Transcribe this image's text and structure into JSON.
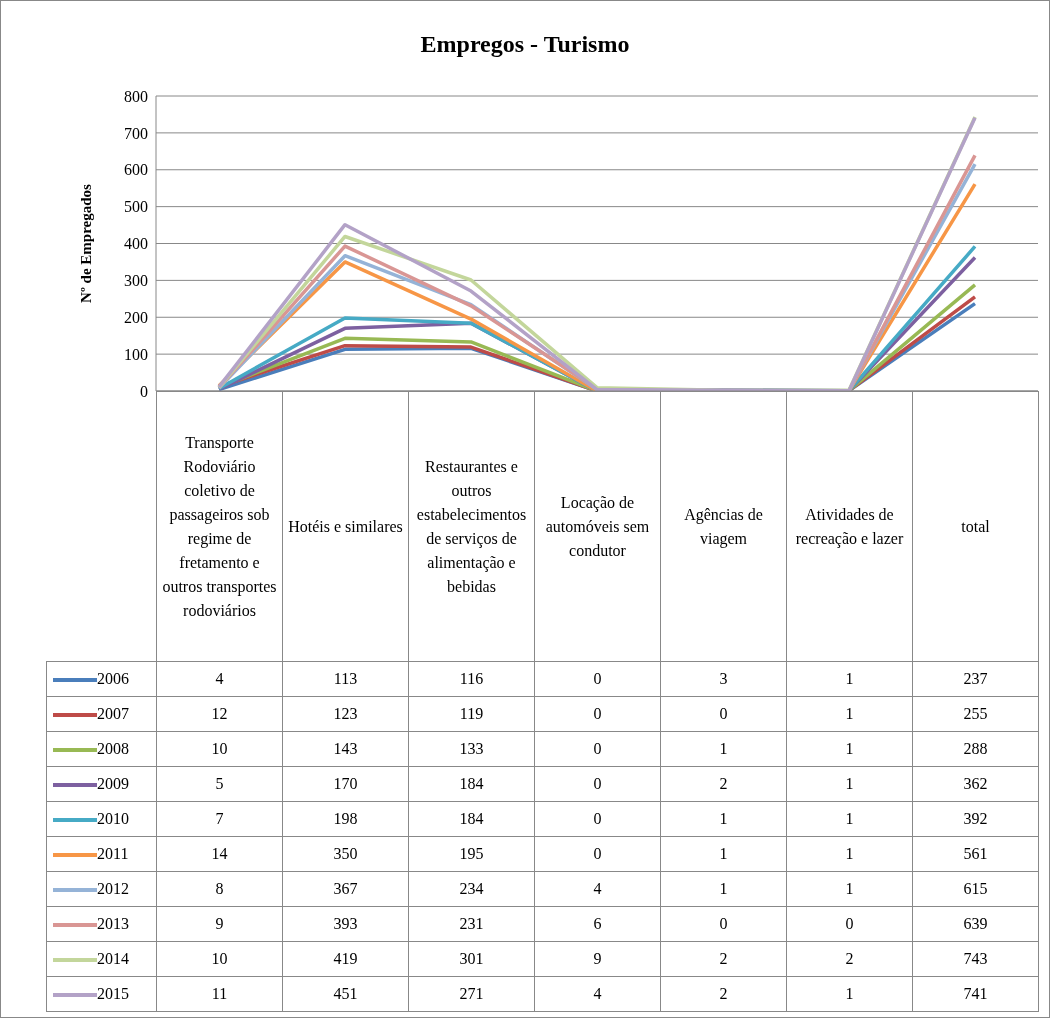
{
  "chart_data": {
    "type": "line",
    "title": "Empregos - Turismo",
    "ylabel": "Nº de Empregados",
    "categories": [
      "Transporte Rodoviário coletivo de passageiros sob regime de fretamento e outros transportes rodoviários",
      "Hotéis e similares",
      "Restaurantes e outros estabelecimentos de serviços de alimentação e bebidas",
      "Locação de automóveis sem condutor",
      "Agências de viagem",
      "Atividades de recreação e lazer",
      "total"
    ],
    "ylim": [
      0,
      800
    ],
    "yticks": [
      0,
      100,
      200,
      300,
      400,
      500,
      600,
      700,
      800
    ],
    "grid": "y",
    "legend": "bottom",
    "data_labels": true,
    "marker": "none",
    "series": [
      {
        "name": "2006",
        "color": "#4a7ebb",
        "values": [
          4,
          113,
          116,
          0,
          3,
          1,
          237
        ]
      },
      {
        "name": "2007",
        "color": "#be4b48",
        "values": [
          12,
          123,
          119,
          0,
          0,
          1,
          255
        ]
      },
      {
        "name": "2008",
        "color": "#98b954",
        "values": [
          10,
          143,
          133,
          0,
          1,
          1,
          288
        ]
      },
      {
        "name": "2009",
        "color": "#7d60a0",
        "values": [
          5,
          170,
          184,
          0,
          2,
          1,
          362
        ]
      },
      {
        "name": "2010",
        "color": "#46aac5",
        "values": [
          7,
          198,
          184,
          0,
          1,
          1,
          392
        ]
      },
      {
        "name": "2011",
        "color": "#f79646",
        "values": [
          14,
          350,
          195,
          0,
          1,
          1,
          561
        ]
      },
      {
        "name": "2012",
        "color": "#95b3d7",
        "values": [
          8,
          367,
          234,
          4,
          1,
          1,
          615
        ]
      },
      {
        "name": "2013",
        "color": "#d99694",
        "values": [
          9,
          393,
          231,
          6,
          0,
          0,
          639
        ]
      },
      {
        "name": "2014",
        "color": "#c3d69b",
        "values": [
          10,
          419,
          301,
          9,
          2,
          2,
          743
        ]
      },
      {
        "name": "2015",
        "color": "#b3a2c7",
        "values": [
          11,
          451,
          271,
          4,
          2,
          1,
          741
        ]
      }
    ]
  }
}
